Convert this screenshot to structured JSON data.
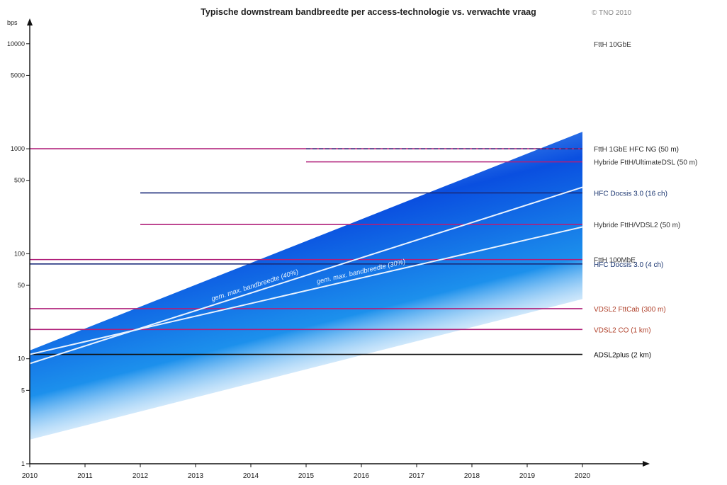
{
  "chart_data": {
    "type": "line",
    "title": "Typische downstream bandbreedte per access-technologie vs. verwachte vraag",
    "credit": "© TNO 2010",
    "ylabel": "bps",
    "y_scale": "log",
    "ylim": [
      1,
      20000
    ],
    "xlim": [
      2010,
      2021
    ],
    "x_ticks": [
      "2010",
      "2011",
      "2012",
      "2013",
      "2014",
      "2015",
      "2016",
      "2017",
      "2018",
      "2019",
      "2020"
    ],
    "y_ticks": [
      {
        "value": 1,
        "label": "1"
      },
      {
        "value": 5,
        "label": "5"
      },
      {
        "value": 10,
        "label": "10"
      },
      {
        "value": 50,
        "label": "50"
      },
      {
        "value": 100,
        "label": "100"
      },
      {
        "value": 500,
        "label": "500"
      },
      {
        "value": 1000,
        "label": "1000"
      },
      {
        "value": 5000,
        "label": "5000"
      },
      {
        "value": 10000,
        "label": "10000"
      }
    ],
    "demand_band": {
      "x": [
        2010,
        2020
      ],
      "lower": [
        1.7,
        37
      ],
      "upper": [
        12,
        1450
      ],
      "color": "#0a4fe0"
    },
    "technologies": [
      {
        "name": "FttH 10GbE",
        "value": 10000,
        "start": 2016.5,
        "color": "#a01060",
        "label_color": "#333333"
      },
      {
        "name": "FttH 1GbE  HFC NG (50 m)",
        "value": 1000,
        "start": 2010,
        "color": "#b0207a",
        "label_color": "#2a2a2a"
      },
      {
        "name": "Hybride FttH/UltimateDSL (50 m)",
        "value": 750,
        "start": 2015,
        "color": "#b0207a",
        "label_color": "#333333"
      },
      {
        "name": "HFC Docsis 3.0 (16 ch)",
        "value": 380,
        "start": 2012,
        "color": "#1a2a7a",
        "label_color": "#1a3570"
      },
      {
        "name": "Hybride FttH/VDSL2 (50 m)",
        "value": 190,
        "start": 2012,
        "color": "#b0207a",
        "label_color": "#333333"
      },
      {
        "name": "FttH 100MbE",
        "value": 88,
        "start": 2010,
        "color": "#b0207a",
        "label_color": "#333333"
      },
      {
        "name": "HFC Docsis 3.0 (4 ch)",
        "value": 80,
        "start": 2010,
        "color": "#1a2a7a",
        "label_color": "#1a3570"
      },
      {
        "name": "VDSL2 FttCab (300 m)",
        "value": 30,
        "start": 2010,
        "color": "#b0207a",
        "label_color": "#b0402a"
      },
      {
        "name": "VDSL2 CO (1 km)",
        "value": 19,
        "start": 2010,
        "color": "#b0207a",
        "label_color": "#b0402a"
      },
      {
        "name": "ADSL2plus (2 km)",
        "value": 11,
        "start": 2010,
        "color": "#111111",
        "label_color": "#111111"
      }
    ],
    "trends": [
      {
        "name": "gem. max. bandbreedte (40%)",
        "start": [
          2010,
          9
        ],
        "end": [
          2020,
          430
        ],
        "color": "#e8f2ff"
      },
      {
        "name": "gem. max. bandbreedte (30%)",
        "start": [
          2010,
          11
        ],
        "end": [
          2020,
          180
        ],
        "color": "#e8f2ff"
      }
    ]
  }
}
